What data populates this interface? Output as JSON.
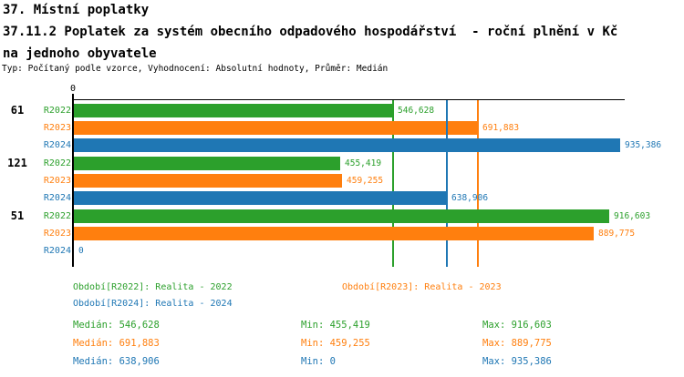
{
  "header": {
    "title_line1": "37. Místní poplatky",
    "title_line2": "37.11.2 Poplatek za systém obecního odpadového hospodářství  - roční plnění v Kč",
    "title_line3": "na jednoho obyvatele",
    "meta": "Typ: Počítaný podle vzorce, Vyhodnocení: Absolutní hodnoty, Průměr: Medián"
  },
  "colors": {
    "r2022": "#2ca02c",
    "r2023": "#ff7f0e",
    "r2024": "#1f77b4",
    "axis": "#000000",
    "background": "#ffffff"
  },
  "chart_data": {
    "type": "bar",
    "orientation": "horizontal",
    "grid": false,
    "legend_position": "bottom",
    "categories": [
      "61",
      "121",
      "51"
    ],
    "x_axis": {
      "min": 0,
      "max": 944800,
      "tick_labels": [
        "0"
      ]
    },
    "series": [
      {
        "name": "R2022",
        "color": "#2ca02c",
        "values": [
          546628,
          455419,
          916603
        ],
        "value_labels": [
          "546,628",
          "455,419",
          "916,603"
        ],
        "median": 546628
      },
      {
        "name": "R2023",
        "color": "#ff7f0e",
        "values": [
          691883,
          459255,
          889775
        ],
        "value_labels": [
          "691,883",
          "459,255",
          "889,775"
        ],
        "median": 691883
      },
      {
        "name": "R2024",
        "color": "#1f77b4",
        "values": [
          935386,
          638906,
          0
        ],
        "value_labels": [
          "935,386",
          "638,906",
          "0"
        ],
        "median": 638906
      }
    ],
    "median_lines_shown": true
  },
  "legend": {
    "items": [
      {
        "name": "R2022",
        "label": "Období[R2022]: Realita - 2022",
        "color": "#2ca02c"
      },
      {
        "name": "R2023",
        "label": "Období[R2023]: Realita - 2023",
        "color": "#ff7f0e"
      },
      {
        "name": "R2024",
        "label": "Období[R2024]: Realita - 2024",
        "color": "#1f77b4"
      }
    ]
  },
  "stats": {
    "rows": [
      {
        "name": "R2022",
        "color": "#2ca02c",
        "median": "Medián: 546,628",
        "min": "Min: 455,419",
        "max": "Max: 916,603"
      },
      {
        "name": "R2023",
        "color": "#ff7f0e",
        "median": "Medián: 691,883",
        "min": "Min: 459,255",
        "max": "Max: 889,775"
      },
      {
        "name": "R2024",
        "color": "#1f77b4",
        "median": "Medián: 638,906",
        "min": "Min: 0",
        "max": "Max: 935,386"
      }
    ]
  }
}
